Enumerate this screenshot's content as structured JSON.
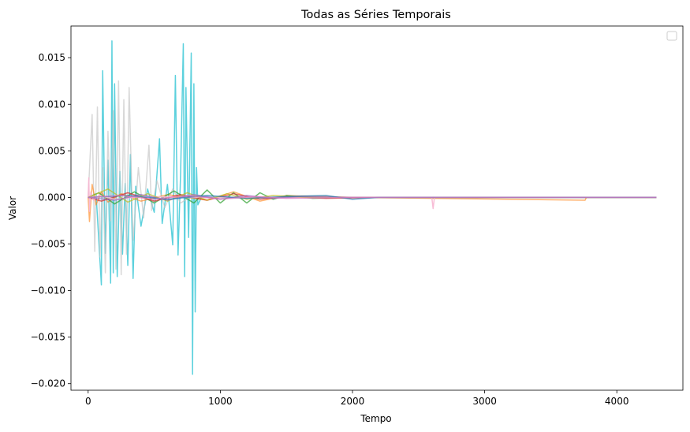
{
  "chart_data": {
    "type": "line",
    "title": "Todas as Séries Temporais",
    "xlabel": "Tempo",
    "ylabel": "Valor",
    "xlim": [
      -130,
      4500
    ],
    "ylim": [
      -0.0207,
      0.0184
    ],
    "x_ticks": [
      0,
      1000,
      2000,
      3000,
      4000
    ],
    "x_tick_labels": [
      "0",
      "1000",
      "2000",
      "3000",
      "4000"
    ],
    "y_ticks": [
      -0.02,
      -0.015,
      -0.01,
      -0.005,
      0.0,
      0.005,
      0.01,
      0.015
    ],
    "y_tick_labels": [
      "−0.020",
      "−0.015",
      "−0.010",
      "−0.005",
      "0.000",
      "0.005",
      "0.010",
      "0.015"
    ],
    "grid": false,
    "legend": {
      "placement": "top-right",
      "entries": []
    },
    "series": [
      {
        "color": "#17becf",
        "opacity": 0.7,
        "x": [
          0,
          60,
          100,
          110,
          130,
          150,
          170,
          180,
          190,
          200,
          220,
          240,
          260,
          280,
          300,
          320,
          340,
          360,
          400,
          450,
          500,
          540,
          560,
          600,
          640,
          660,
          680,
          700,
          720,
          730,
          740,
          760,
          780,
          790,
          800,
          810,
          820,
          830,
          860,
          1000,
          2000,
          3000,
          4300
        ],
        "y": [
          0.0,
          0.0004,
          -0.0094,
          0.0136,
          -0.006,
          0.004,
          -0.0092,
          0.0168,
          -0.0081,
          0.0122,
          -0.0085,
          0.0028,
          -0.0061,
          0.0015,
          -0.0073,
          0.0046,
          -0.0087,
          0.0012,
          -0.0031,
          0.0009,
          -0.0016,
          0.0063,
          -0.0028,
          0.0014,
          -0.0051,
          0.0131,
          -0.0062,
          0.0028,
          0.0165,
          -0.0085,
          0.0118,
          -0.0043,
          0.0155,
          -0.019,
          0.0122,
          -0.0123,
          0.0032,
          -0.0008,
          0.0001,
          0.0,
          0.0,
          0.0,
          0.0
        ]
      },
      {
        "color": "#c7c7c7",
        "opacity": 0.7,
        "x": [
          0,
          30,
          50,
          70,
          90,
          110,
          130,
          150,
          170,
          190,
          210,
          230,
          250,
          270,
          290,
          310,
          340,
          380,
          420,
          460,
          480,
          520,
          580,
          640,
          700,
          800,
          1000,
          2000,
          4300
        ],
        "y": [
          0.0,
          0.0089,
          -0.0058,
          0.0097,
          -0.0064,
          0.0032,
          -0.0081,
          0.0071,
          -0.0025,
          0.0093,
          -0.0077,
          0.0125,
          -0.0083,
          0.0105,
          -0.0061,
          0.0118,
          -0.0046,
          0.0032,
          -0.0022,
          0.0056,
          -0.0014,
          0.0018,
          -0.0011,
          0.0009,
          -0.0006,
          0.0003,
          -0.0001,
          0.0,
          0.0
        ]
      },
      {
        "color": "#ff7f0e",
        "opacity": 0.6,
        "x": [
          0,
          10,
          30,
          60,
          100,
          150,
          250,
          400,
          600,
          900,
          1100,
          1300,
          1500,
          2000,
          3760,
          3770,
          4300
        ],
        "y": [
          0.0,
          -0.0026,
          0.0014,
          -0.0008,
          0.0006,
          -0.0005,
          0.0004,
          -0.0004,
          0.0003,
          -0.0003,
          0.0006,
          -0.0004,
          0.0002,
          0.0,
          -0.0003,
          0.0,
          0.0
        ]
      },
      {
        "color": "#2ca02c",
        "opacity": 0.7,
        "x": [
          0,
          80,
          200,
          350,
          500,
          650,
          800,
          900,
          1000,
          1100,
          1200,
          1300,
          1400,
          1500,
          1700,
          2000,
          4300
        ],
        "y": [
          0.0,
          0.0005,
          -0.0007,
          0.0006,
          -0.0006,
          0.0007,
          -0.0006,
          0.0008,
          -0.0006,
          0.0005,
          -0.0006,
          0.0005,
          -0.0002,
          0.0002,
          -0.0001,
          0.0,
          0.0
        ]
      },
      {
        "color": "#d62728",
        "opacity": 0.7,
        "x": [
          0,
          100,
          300,
          500,
          700,
          900,
          1100,
          1300,
          1500,
          1800,
          2200,
          4300
        ],
        "y": [
          0.0,
          -0.0004,
          0.0005,
          -0.0004,
          0.0003,
          -0.0003,
          0.0004,
          -0.0002,
          0.0001,
          -0.0001,
          0.0,
          0.0
        ]
      },
      {
        "color": "#f7b6d2",
        "opacity": 0.9,
        "x": [
          0,
          5,
          10,
          20,
          40,
          80,
          200,
          400,
          800,
          1500,
          2500,
          2600,
          2610,
          2620,
          2630,
          2700,
          4300
        ],
        "y": [
          0.0,
          0.0021,
          -0.0015,
          0.0006,
          -0.0003,
          0.0002,
          -0.0002,
          0.0001,
          0.0,
          0.0,
          0.0,
          0.0,
          -0.0012,
          0.0,
          0.0,
          0.0,
          0.0
        ]
      },
      {
        "color": "#bcbd22",
        "opacity": 0.7,
        "x": [
          0,
          150,
          300,
          450,
          600,
          750,
          900,
          1050,
          1200,
          1400,
          1700,
          4300
        ],
        "y": [
          0.0,
          0.0009,
          -0.0005,
          0.0004,
          -0.0004,
          0.0005,
          -0.0003,
          0.0004,
          -0.0002,
          0.0002,
          0.0,
          0.0
        ]
      },
      {
        "color": "#9467bd",
        "opacity": 0.7,
        "x": [
          0,
          200,
          400,
          600,
          800,
          1000,
          1200,
          1400,
          1600,
          2000,
          4300
        ],
        "y": [
          0.0,
          -0.0003,
          0.0003,
          -0.0003,
          0.0003,
          -0.0002,
          0.0002,
          -0.0001,
          0.0001,
          0.0,
          0.0
        ]
      },
      {
        "color": "#1f77b4",
        "opacity": 0.7,
        "x": [
          0,
          300,
          600,
          900,
          1200,
          1500,
          1800,
          2000,
          2200,
          4300
        ],
        "y": [
          0.0,
          0.0002,
          -0.0002,
          0.0002,
          -0.0001,
          0.0001,
          0.0002,
          -0.0002,
          0.0,
          0.0
        ]
      },
      {
        "color": "#e377c2",
        "opacity": 0.7,
        "x": [
          0,
          250,
          500,
          750,
          1000,
          1250,
          1500,
          2000,
          4300
        ],
        "y": [
          0.0,
          0.0002,
          -0.0002,
          0.0002,
          -0.0002,
          0.0001,
          -0.0001,
          0.0,
          0.0
        ]
      }
    ]
  }
}
